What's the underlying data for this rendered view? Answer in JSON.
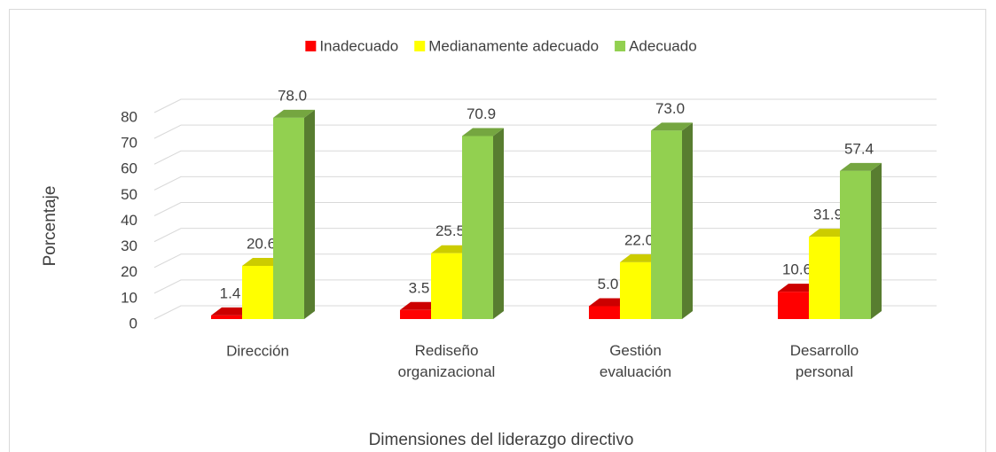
{
  "chart_data": {
    "type": "bar3d",
    "categories": [
      "Dirección",
      "Rediseño organizacional",
      "Gestión evaluación",
      "Desarrollo personal"
    ],
    "series": [
      {
        "name": "Inadecuado",
        "color": "#ff0000",
        "values": [
          1.4,
          3.5,
          5.0,
          10.6
        ],
        "value_labels": [
          "1.4",
          "3.5",
          "5.0",
          "10.6"
        ]
      },
      {
        "name": "Medianamente adecuado",
        "color": "#ffff00",
        "values": [
          20.6,
          25.5,
          22.0,
          31.9
        ],
        "value_labels": [
          "20.6",
          "25.5",
          "22.0",
          "31.9"
        ]
      },
      {
        "name": "Adecuado",
        "color": "#92d050",
        "values": [
          78.0,
          70.9,
          73.0,
          57.4
        ],
        "value_labels": [
          "78.0",
          "70.9",
          "73.0",
          "57.4"
        ]
      }
    ],
    "ylabel": "Porcentaje",
    "xlabel": "Dimensiones del liderazgo directivo",
    "ylim": [
      0,
      80
    ],
    "yticks": [
      0,
      10,
      20,
      30,
      40,
      50,
      60,
      70,
      80
    ],
    "grid": true,
    "legend": "top"
  }
}
